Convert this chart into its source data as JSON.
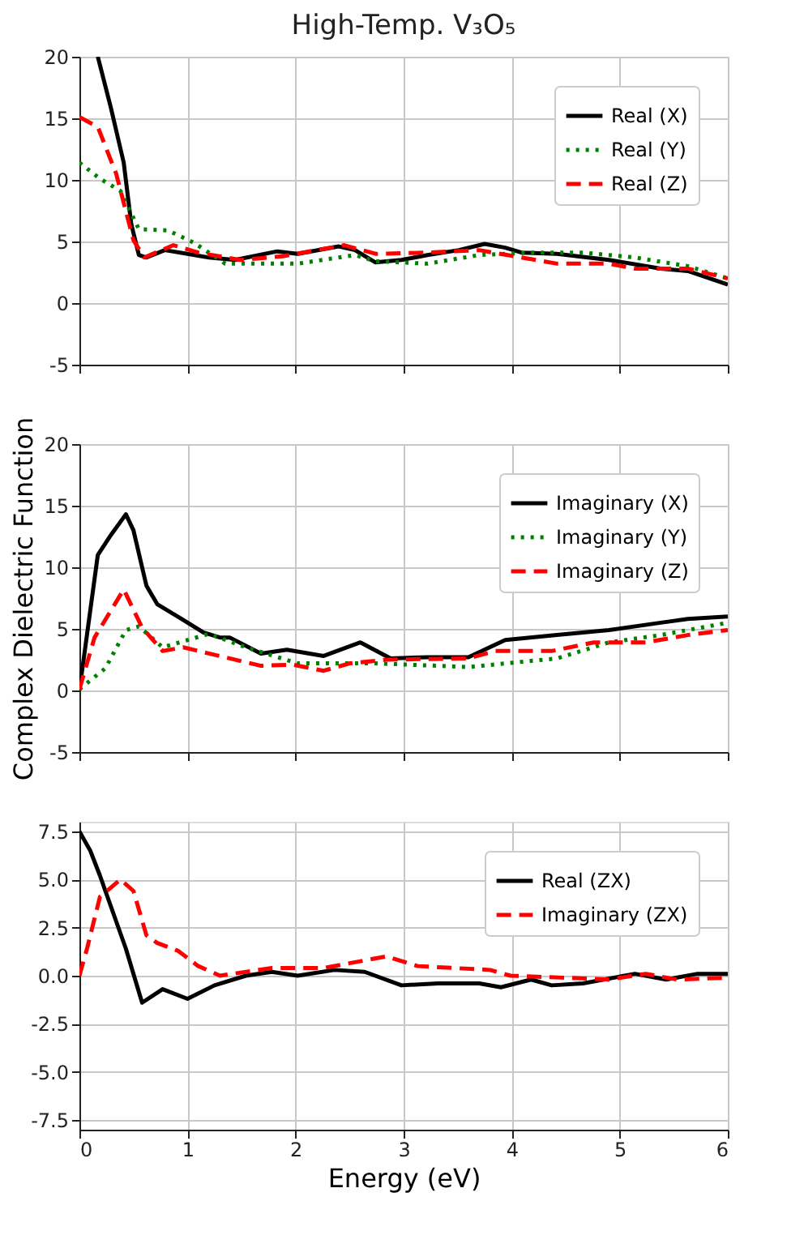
{
  "chart_data": [
    {
      "type": "line",
      "title": "High-Temp. V₃O₅",
      "xlim": [
        0,
        6
      ],
      "xticks": [
        0,
        1,
        2,
        3,
        4,
        5,
        6
      ],
      "ylim": [
        -5,
        20
      ],
      "yticks": [
        -5,
        0,
        5,
        10,
        15,
        20
      ],
      "grid": true,
      "legend": "top right",
      "tick_labels": "y",
      "series": [
        {
          "name": "Real (X)",
          "color": "#000000",
          "line_style": "solid",
          "x": [
            0.17,
            0.29,
            0.41,
            0.48,
            0.55,
            0.62,
            0.79,
            1.0,
            1.2,
            1.44,
            1.83,
            2.02,
            2.4,
            2.55,
            2.74,
            2.98,
            3.22,
            3.51,
            3.75,
            3.94,
            4.09,
            4.42,
            4.9,
            5.38,
            5.63,
            6.0
          ],
          "values": [
            20,
            15.9,
            11.4,
            6.4,
            3.9,
            3.7,
            4.3,
            4.0,
            3.7,
            3.5,
            4.2,
            4.0,
            4.6,
            4.3,
            3.3,
            3.5,
            3.9,
            4.3,
            4.8,
            4.5,
            4.1,
            4.0,
            3.5,
            2.8,
            2.6,
            1.5
          ]
        },
        {
          "name": "Real (Y)",
          "color": "#008000",
          "line_style": "dotted",
          "x": [
            0,
            0.19,
            0.38,
            0.55,
            0.82,
            1.06,
            1.35,
            2.02,
            2.55,
            2.74,
            3.22,
            3.7,
            4.18,
            4.66,
            5.14,
            5.63,
            6.0
          ],
          "values": [
            11.4,
            10.1,
            9.1,
            6.0,
            5.9,
            4.9,
            3.2,
            3.2,
            3.9,
            3.4,
            3.2,
            3.9,
            4.1,
            4.1,
            3.7,
            3.0,
            2.0
          ]
        },
        {
          "name": "Real (Z)",
          "color": "#ff0000",
          "line_style": "dashed",
          "x": [
            0,
            0.17,
            0.34,
            0.5,
            0.6,
            0.87,
            1.1,
            1.49,
            1.88,
            2.45,
            2.74,
            3.22,
            3.7,
            4.09,
            4.42,
            4.9,
            5.14,
            5.63,
            6.0
          ],
          "values": [
            15.1,
            14.3,
            10.5,
            5.1,
            3.7,
            4.7,
            4.1,
            3.5,
            3.8,
            4.7,
            4.0,
            4.1,
            4.3,
            3.7,
            3.2,
            3.2,
            2.8,
            2.8,
            2.0
          ]
        }
      ]
    },
    {
      "type": "line",
      "ylabel": "Complex Dielectric Function",
      "xlim": [
        0,
        6
      ],
      "xticks": [
        0,
        1,
        2,
        3,
        4,
        5,
        6
      ],
      "ylim": [
        -5,
        20
      ],
      "yticks": [
        -5,
        0,
        5,
        10,
        15,
        20
      ],
      "grid": true,
      "legend": "top right",
      "tick_labels": "y",
      "series": [
        {
          "name": "Imaginary (X)",
          "color": "#000000",
          "line_style": "solid",
          "x": [
            0,
            0.17,
            0.29,
            0.43,
            0.5,
            0.62,
            0.72,
            0.91,
            1.15,
            1.3,
            1.39,
            1.68,
            1.92,
            2.26,
            2.6,
            2.88,
            3.22,
            3.6,
            3.94,
            4.42,
            4.9,
            5.38,
            5.63,
            6.0
          ],
          "values": [
            0,
            11.0,
            12.6,
            14.3,
            13.0,
            8.5,
            7.0,
            6.0,
            4.7,
            4.3,
            4.3,
            3.0,
            3.3,
            2.8,
            3.9,
            2.6,
            2.7,
            2.7,
            4.1,
            4.5,
            4.9,
            5.5,
            5.8,
            6.0
          ]
        },
        {
          "name": "Imaginary (Y)",
          "color": "#008000",
          "line_style": "dotted",
          "x": [
            0,
            0.24,
            0.43,
            0.55,
            0.77,
            1.2,
            1.54,
            2.02,
            2.74,
            3.6,
            4.18,
            4.42,
            4.9,
            5.38,
            6.0
          ],
          "values": [
            0.1,
            1.8,
            4.9,
            5.2,
            3.5,
            4.6,
            3.5,
            2.2,
            2.2,
            1.9,
            2.4,
            2.6,
            3.9,
            4.5,
            5.5
          ]
        },
        {
          "name": "Imaginary (Z)",
          "color": "#ff0000",
          "line_style": "dashed",
          "x": [
            0,
            0.14,
            0.41,
            0.58,
            0.77,
            0.96,
            1.68,
            1.97,
            2.26,
            2.5,
            2.84,
            3.6,
            3.85,
            4.37,
            4.76,
            5.24,
            5.63,
            6.0
          ],
          "values": [
            0.1,
            4.3,
            8.2,
            5.1,
            3.2,
            3.5,
            2.0,
            2.1,
            1.6,
            2.2,
            2.5,
            2.6,
            3.2,
            3.2,
            3.9,
            3.9,
            4.5,
            4.9
          ]
        }
      ]
    },
    {
      "type": "line",
      "xlabel": "Energy (eV)",
      "xlim": [
        0,
        6
      ],
      "xticks": [
        0,
        1,
        2,
        3,
        4,
        5,
        6
      ],
      "ylim": [
        -8,
        8
      ],
      "yticks": [
        -7.5,
        {
          "value": -5,
          "label": "-5.0"
        },
        -2.5,
        {
          "value": 0,
          "label": "0.0"
        },
        2.5,
        {
          "value": 5,
          "label": "5.0"
        },
        7.5
      ],
      "grid": true,
      "legend": "top right",
      "series": [
        {
          "name": "Real (ZX)",
          "color": "#000000",
          "line_style": "solid",
          "x": [
            0,
            0.1,
            0.19,
            0.43,
            0.58,
            0.77,
            1.0,
            1.25,
            1.54,
            1.78,
            2.02,
            2.36,
            2.64,
            2.98,
            3.32,
            3.7,
            3.9,
            4.18,
            4.37,
            4.66,
            5.14,
            5.43,
            5.72,
            6.0
          ],
          "values": [
            7.5,
            6.5,
            5.2,
            1.4,
            -1.4,
            -0.7,
            -1.2,
            -0.5,
            0.0,
            0.2,
            0,
            0.3,
            0.2,
            -0.5,
            -0.4,
            -0.4,
            -0.6,
            -0.2,
            -0.5,
            -0.4,
            0.1,
            -0.2,
            0.1,
            0.1
          ]
        },
        {
          "name": "Imaginary (ZX)",
          "color": "#ff0000",
          "line_style": "dashed",
          "x": [
            0,
            0.07,
            0.19,
            0.38,
            0.5,
            0.62,
            0.72,
            0.91,
            1.1,
            1.3,
            1.78,
            2.26,
            2.84,
            3.13,
            3.8,
            3.99,
            4.47,
            4.9,
            5.24,
            5.53,
            6.0
          ],
          "values": [
            0,
            1.4,
            4.1,
            5.0,
            4.4,
            2.1,
            1.7,
            1.3,
            0.5,
            0,
            0.4,
            0.4,
            1.0,
            0.5,
            0.3,
            0,
            -0.1,
            -0.2,
            0.1,
            -0.2,
            -0.1
          ]
        }
      ]
    }
  ]
}
